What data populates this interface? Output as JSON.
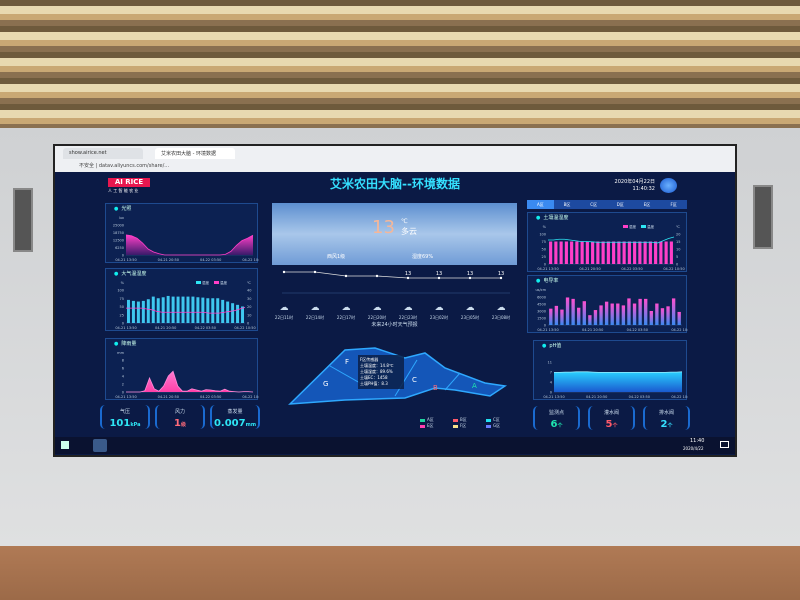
{
  "browser": {
    "tabs": [
      "show.airice.net",
      "艾米农田大脑 - 环境数据"
    ],
    "url": "不安全 | datav.aliyuncs.com/share/..."
  },
  "header": {
    "logo": "AI RICE",
    "logo_sub": "人 工 智 能 农 业",
    "title": "艾米农田大脑--环境数据",
    "date": "2020年04月22日",
    "time": "11:40:32"
  },
  "colors": {
    "bg": "#0b1a45",
    "pink": "#ff3fc8",
    "cyan": "#2ee6f5",
    "title": "#35e0ff"
  },
  "illumination": {
    "title": "光照",
    "unit": "lux",
    "yticks": [
      "0",
      "6250",
      "12500",
      "18750",
      "25000"
    ],
    "xticks": [
      "04-21 13:50",
      "04-21 20:50",
      "04-22 03:50",
      "04-22 10:50"
    ],
    "values": [
      16750,
      16000,
      14000,
      10000,
      5000,
      2500,
      1000,
      0,
      0,
      0,
      0,
      0,
      0,
      0,
      0,
      0,
      0,
      0,
      500,
      3000,
      8000,
      12000,
      14000,
      16500
    ]
  },
  "air": {
    "title": "大气温湿度",
    "legend": [
      "湿度",
      "温度"
    ],
    "yleft": [
      "0",
      "25",
      "50",
      "75",
      "100"
    ],
    "yright": [
      "0",
      "10",
      "20",
      "30",
      "40"
    ],
    "uleft": "%",
    "uright": "℃",
    "xticks": [
      "04-21 13:50",
      "04-21 20:50",
      "04-22 03:50",
      "04-22 10:50"
    ],
    "humidity": [
      70,
      67,
      65,
      67,
      72,
      80,
      75,
      78,
      82,
      80,
      80,
      80,
      80,
      80,
      78,
      77,
      75,
      75,
      75,
      70,
      65,
      60,
      55,
      50
    ],
    "temperature": [
      18,
      18,
      18,
      18,
      17,
      16,
      14,
      13,
      13,
      13,
      13,
      13,
      13,
      13,
      13,
      13,
      12,
      12,
      12,
      13,
      14,
      15,
      17,
      19
    ]
  },
  "rain": {
    "title": "降雨量",
    "unit": "mm",
    "yticks": [
      "0",
      "2",
      "4",
      "6",
      "8"
    ],
    "xticks": [
      "04-21 13:50",
      "04-21 20:50",
      "04-22 03:50",
      "04-22 10:50"
    ],
    "values": [
      0,
      0,
      0,
      0,
      0.3,
      3.5,
      0.8,
      0.2,
      1.5,
      4,
      5.2,
      1.5,
      0.2,
      0.2,
      0.8,
      0.5,
      0.2,
      0.6,
      0.5,
      0.3,
      0.2,
      0.7,
      0.2,
      0.1,
      0,
      0.1,
      0.1,
      0
    ]
  },
  "stats_left": [
    {
      "label": "气压",
      "value": "101",
      "unit": "kPa",
      "color": "#2ee6f5"
    },
    {
      "label": "风力",
      "value": "1",
      "unit": "级",
      "color": "#ff6b7a"
    },
    {
      "label": "蒸发量",
      "value": "0.007",
      "unit": "mm",
      "color": "#2ee6f5"
    }
  ],
  "weather": {
    "temp": "13",
    "temp_unit": "℃",
    "condition": "多云",
    "wind": "西风1级",
    "humidity": "湿度69%",
    "forecast_temps": [
      "13",
      "13",
      "13",
      "13",
      "13",
      "13",
      "13",
      "13"
    ],
    "forecast_times": [
      "22日11时",
      "22日14时",
      "22日17时",
      "22日20时",
      "22日23时",
      "23日02时",
      "23日05时",
      "23日08时"
    ],
    "caption": "未来24小时天气预报"
  },
  "map": {
    "zones": [
      "A",
      "B",
      "C",
      "F",
      "G"
    ],
    "tooltip": [
      "F区传感器",
      "土壤温度：14.8℃",
      "土壤湿度：89.6%",
      "土壤EC：1458",
      "土壤PH值：8.3"
    ],
    "legend": [
      {
        "label": "A区",
        "color": "#1ed6a0"
      },
      {
        "label": "B区",
        "color": "#ff5a6a"
      },
      {
        "label": "C区",
        "color": "#22e0f0"
      },
      {
        "label": "E区",
        "color": "#ff3fb0"
      },
      {
        "label": "F区",
        "color": "#f5e08a"
      },
      {
        "label": "G区",
        "color": "#6a7cff"
      }
    ]
  },
  "zone_tabs": [
    "A区",
    "B区",
    "C区",
    "D区",
    "E区",
    "F区"
  ],
  "soil": {
    "title": "土壤温湿度",
    "legend": [
      "湿度",
      "温度"
    ],
    "yleft": [
      "0",
      "25",
      "50",
      "75",
      "100"
    ],
    "yright": [
      "0",
      "5",
      "10",
      "15",
      "20"
    ],
    "uleft": "%",
    "uright": "℃",
    "xticks": [
      "04-21 13:50",
      "04-21 20:50",
      "04-22 03:50",
      "04-22 10:50"
    ],
    "humidity": [
      75,
      75,
      75,
      75,
      75,
      75,
      75,
      75,
      75,
      75,
      75,
      75,
      75,
      75,
      75,
      75,
      75,
      75,
      75,
      75,
      75,
      75,
      75,
      75
    ],
    "temperature": [
      16,
      16,
      16.5,
      16.5,
      16,
      15.5,
      15,
      15,
      14.8,
      14.5,
      14.5,
      14.5,
      14.5,
      14.5,
      14.5,
      14.5,
      14.5,
      14.5,
      14.5,
      14.5,
      14,
      15.5,
      17,
      18
    ]
  },
  "ec": {
    "title": "电导率",
    "unit": "us/cm",
    "yticks": [
      "0",
      "1500",
      "3000",
      "4500",
      "6000"
    ],
    "xticks": [
      "04-21 13:50",
      "04-21 20:50",
      "04-22 03:50",
      "04-22 10:50"
    ],
    "values": [
      3500,
      4100,
      3300,
      5900,
      5600,
      3700,
      5100,
      2100,
      3200,
      4200,
      5000,
      4600,
      4600,
      4200,
      5700,
      4600,
      5600,
      5600,
      3000,
      4600,
      3600,
      4000,
      5700,
      2800
    ]
  },
  "ph": {
    "title": "pH值",
    "yticks": [
      "0",
      "4",
      "7",
      "11"
    ],
    "xticks": [
      "04-21 13:50",
      "04-21 20:50",
      "04-22 03:50",
      "04-22 10:50"
    ],
    "values": [
      7.2,
      7.2,
      7.3,
      7.3,
      7.4,
      7.4,
      7.4,
      7.3,
      7.2,
      7.2,
      7.2,
      7.2,
      7.2,
      7.2,
      7.2,
      7.2,
      7.2,
      7.2,
      7.2,
      7.2,
      7.2,
      7.3,
      7.3,
      7.4
    ]
  },
  "stats_right": [
    {
      "label": "监测点",
      "value": "6",
      "unit": "个",
      "color": "#1ee6b0"
    },
    {
      "label": "灌水阀",
      "value": "5",
      "unit": "个",
      "color": "#ff5a6a"
    },
    {
      "label": "排水阀",
      "value": "2",
      "unit": "个",
      "color": "#35e0ff"
    }
  ],
  "taskbar": {
    "time": "11:40",
    "date": "2020/4/22"
  }
}
